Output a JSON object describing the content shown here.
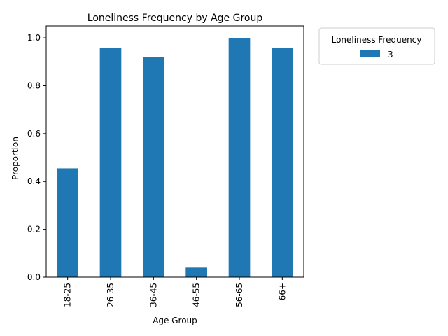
{
  "chart_data": {
    "type": "bar",
    "title": "Loneliness Frequency by Age Group",
    "xlabel": "Age Group",
    "ylabel": "Proportion",
    "categories": [
      "18-25",
      "26-35",
      "36-45",
      "46-55",
      "56-65",
      "66+"
    ],
    "series": [
      {
        "name": "3",
        "values": [
          0.455,
          0.957,
          0.92,
          0.04,
          1.0,
          0.957
        ]
      }
    ],
    "ylim": [
      0,
      1.05
    ],
    "yticks": [
      0.0,
      0.2,
      0.4,
      0.6,
      0.8,
      1.0
    ],
    "ytick_labels": [
      "0.0",
      "0.2",
      "0.4",
      "0.6",
      "0.8",
      "1.0"
    ],
    "grid": false,
    "legend": {
      "title": "Loneliness Frequency",
      "placement": "outside-top-right"
    },
    "colors": {
      "series": "#1f77b4",
      "axis": "#000000",
      "legend_border": "#cccccc"
    }
  }
}
